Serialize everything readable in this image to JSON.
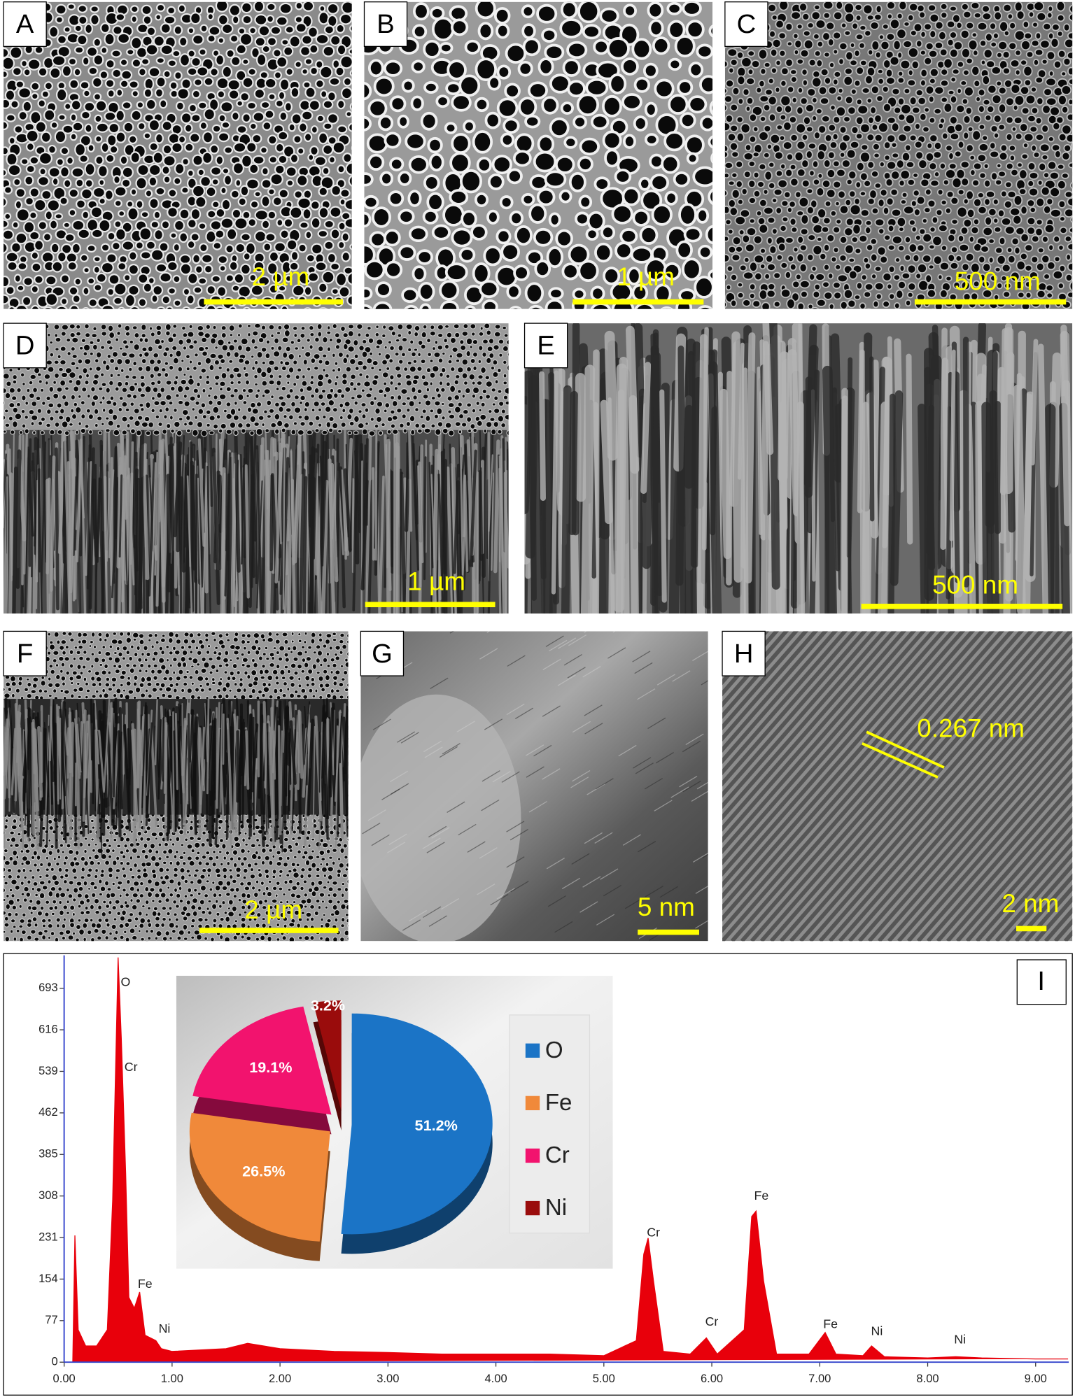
{
  "panels": [
    {
      "label": "A",
      "scale_bar": "2 µm"
    },
    {
      "label": "B",
      "scale_bar": "1 µm"
    },
    {
      "label": "C",
      "scale_bar": "500 nm"
    },
    {
      "label": "D",
      "scale_bar": "1 µm"
    },
    {
      "label": "E",
      "scale_bar": "500 nm"
    },
    {
      "label": "F",
      "scale_bar": "2 µm"
    },
    {
      "label": "G",
      "scale_bar": "5 nm"
    },
    {
      "label": "H",
      "scale_bar": "2 nm",
      "annotation": "0.267 nm"
    }
  ],
  "chart_data": [
    {
      "type": "area",
      "panel_label": "I",
      "color": "#e8000b",
      "x": [
        0.0,
        0.08,
        0.1,
        0.13,
        0.2,
        0.3,
        0.4,
        0.45,
        0.5,
        0.53,
        0.57,
        0.6,
        0.65,
        0.7,
        0.75,
        0.85,
        0.9,
        1.0,
        1.5,
        1.7,
        2.0,
        2.5,
        3.0,
        3.5,
        4.0,
        4.5,
        5.0,
        5.3,
        5.37,
        5.41,
        5.46,
        5.55,
        5.8,
        5.95,
        6.05,
        6.3,
        6.37,
        6.41,
        6.48,
        6.6,
        6.9,
        7.05,
        7.15,
        7.4,
        7.48,
        7.6,
        8.0,
        8.26,
        8.5,
        9.0,
        9.3
      ],
      "values": [
        0,
        0,
        235,
        60,
        30,
        30,
        60,
        300,
        750,
        600,
        350,
        120,
        100,
        130,
        50,
        40,
        25,
        20,
        25,
        35,
        25,
        20,
        18,
        15,
        15,
        15,
        12,
        40,
        200,
        230,
        150,
        20,
        15,
        45,
        15,
        60,
        270,
        280,
        150,
        15,
        15,
        55,
        15,
        12,
        30,
        10,
        8,
        10,
        8,
        6,
        6
      ],
      "xlim": [
        0,
        9.35
      ],
      "ylim": [
        0,
        754
      ],
      "xticks": [
        {
          "value": 0,
          "label": "0.00"
        },
        {
          "value": 1,
          "label": "1.00"
        },
        {
          "value": 2,
          "label": "2.00"
        },
        {
          "value": 3,
          "label": "3.00"
        },
        {
          "value": 4,
          "label": "4.00"
        },
        {
          "value": 5,
          "label": "5.00"
        },
        {
          "value": 6,
          "label": "6.00"
        },
        {
          "value": 7,
          "label": "7.00"
        },
        {
          "value": 8,
          "label": "8.00"
        },
        {
          "value": 9,
          "label": "9.00"
        }
      ],
      "yticks": [
        0,
        77,
        154,
        231,
        308,
        385,
        462,
        539,
        616,
        693
      ],
      "peak_labels": [
        {
          "label": "O",
          "x": 0.52,
          "y": 703
        },
        {
          "label": "Cr",
          "x": 0.57,
          "y": 546
        },
        {
          "label": "Fe",
          "x": 0.7,
          "y": 144
        },
        {
          "label": "Ni",
          "x": 0.88,
          "y": 61
        },
        {
          "label": "Cr",
          "x": 5.41,
          "y": 239
        },
        {
          "label": "Cr",
          "x": 5.95,
          "y": 74
        },
        {
          "label": "Fe",
          "x": 6.41,
          "y": 307
        },
        {
          "label": "Fe",
          "x": 7.05,
          "y": 69
        },
        {
          "label": "Ni",
          "x": 7.48,
          "y": 56
        },
        {
          "label": "Ni",
          "x": 8.25,
          "y": 41
        }
      ]
    },
    {
      "type": "pie",
      "categories": [
        "O",
        "Fe",
        "Cr",
        "Ni"
      ],
      "values": [
        51.2,
        26.5,
        19.1,
        3.2
      ],
      "value_labels": [
        "51.2%",
        "26.5%",
        "19.1%",
        "3.2%"
      ],
      "colors": [
        "#1b74c6",
        "#f0893a",
        "#f2136e",
        "#9a0c0c"
      ]
    }
  ]
}
